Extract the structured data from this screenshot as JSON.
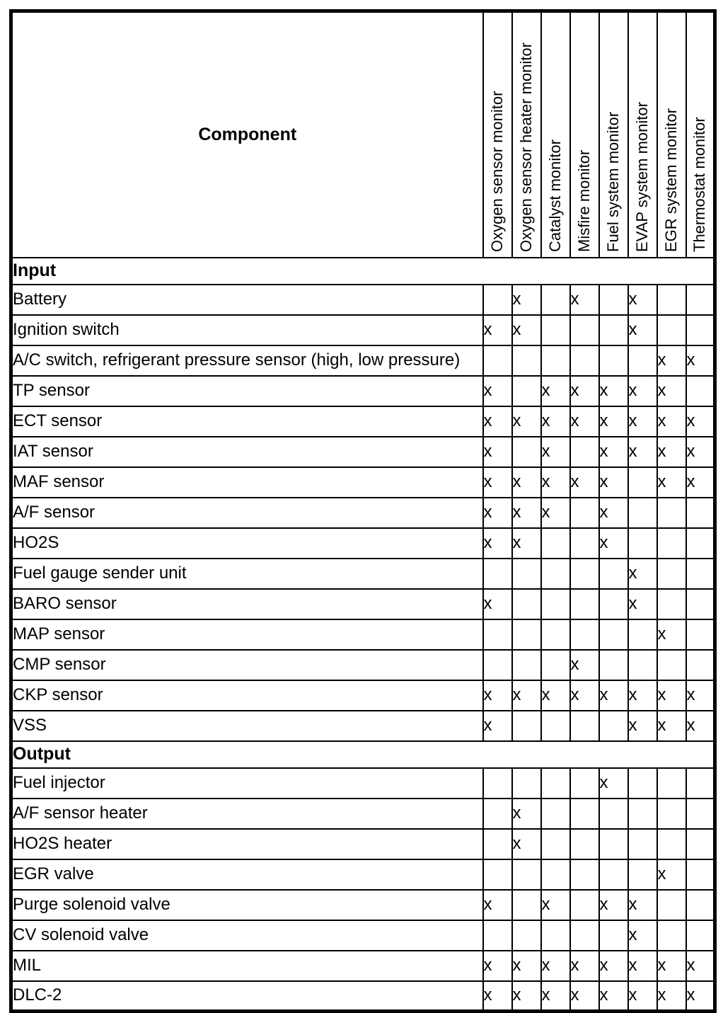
{
  "page": {
    "background_color": "#ffffff",
    "line_color": "#000000",
    "text_color": "#000000"
  },
  "table": {
    "component_header": "Component",
    "mark_symbol": "x",
    "monitor_columns": [
      "Oxygen sensor monitor",
      "Oxygen sensor heater monitor",
      "Catalyst monitor",
      "Misfire monitor",
      "Fuel system monitor",
      "EVAP system monitor",
      "EGR system monitor",
      "Thermostat monitor"
    ],
    "sections": [
      {
        "label": "Input",
        "rows": [
          {
            "component": "Battery",
            "marks": [
              0,
              1,
              0,
              1,
              0,
              1,
              0,
              0
            ]
          },
          {
            "component": "Ignition switch",
            "marks": [
              1,
              1,
              0,
              0,
              0,
              1,
              0,
              0
            ]
          },
          {
            "component": "A/C switch, refrigerant pressure sensor (high, low pressure)",
            "marks": [
              0,
              0,
              0,
              0,
              0,
              0,
              1,
              1
            ]
          },
          {
            "component": "TP sensor",
            "marks": [
              1,
              0,
              1,
              1,
              1,
              1,
              1,
              0
            ]
          },
          {
            "component": "ECT sensor",
            "marks": [
              1,
              1,
              1,
              1,
              1,
              1,
              1,
              1
            ]
          },
          {
            "component": "IAT sensor",
            "marks": [
              1,
              0,
              1,
              0,
              1,
              1,
              1,
              1
            ]
          },
          {
            "component": "MAF sensor",
            "marks": [
              1,
              1,
              1,
              1,
              1,
              0,
              1,
              1
            ]
          },
          {
            "component": "A/F sensor",
            "marks": [
              1,
              1,
              1,
              0,
              1,
              0,
              0,
              0
            ]
          },
          {
            "component": "HO2S",
            "marks": [
              1,
              1,
              0,
              0,
              1,
              0,
              0,
              0
            ]
          },
          {
            "component": "Fuel gauge sender unit",
            "marks": [
              0,
              0,
              0,
              0,
              0,
              1,
              0,
              0
            ]
          },
          {
            "component": "BARO sensor",
            "marks": [
              1,
              0,
              0,
              0,
              0,
              1,
              0,
              0
            ]
          },
          {
            "component": "MAP sensor",
            "marks": [
              0,
              0,
              0,
              0,
              0,
              0,
              1,
              0
            ]
          },
          {
            "component": "CMP sensor",
            "marks": [
              0,
              0,
              0,
              1,
              0,
              0,
              0,
              0
            ]
          },
          {
            "component": "CKP sensor",
            "marks": [
              1,
              1,
              1,
              1,
              1,
              1,
              1,
              1
            ]
          },
          {
            "component": "VSS",
            "marks": [
              1,
              0,
              0,
              0,
              0,
              1,
              1,
              1
            ]
          }
        ]
      },
      {
        "label": "Output",
        "rows": [
          {
            "component": "Fuel injector",
            "marks": [
              0,
              0,
              0,
              0,
              1,
              0,
              0,
              0
            ]
          },
          {
            "component": "A/F sensor heater",
            "marks": [
              0,
              1,
              0,
              0,
              0,
              0,
              0,
              0
            ]
          },
          {
            "component": "HO2S heater",
            "marks": [
              0,
              1,
              0,
              0,
              0,
              0,
              0,
              0
            ]
          },
          {
            "component": "EGR valve",
            "marks": [
              0,
              0,
              0,
              0,
              0,
              0,
              1,
              0
            ]
          },
          {
            "component": "Purge solenoid valve",
            "marks": [
              1,
              0,
              1,
              0,
              1,
              1,
              0,
              0
            ]
          },
          {
            "component": "CV solenoid valve",
            "marks": [
              0,
              0,
              0,
              0,
              0,
              1,
              0,
              0
            ]
          },
          {
            "component": "MIL",
            "marks": [
              1,
              1,
              1,
              1,
              1,
              1,
              1,
              1
            ]
          },
          {
            "component": "DLC-2",
            "marks": [
              1,
              1,
              1,
              1,
              1,
              1,
              1,
              1
            ]
          }
        ]
      }
    ]
  }
}
